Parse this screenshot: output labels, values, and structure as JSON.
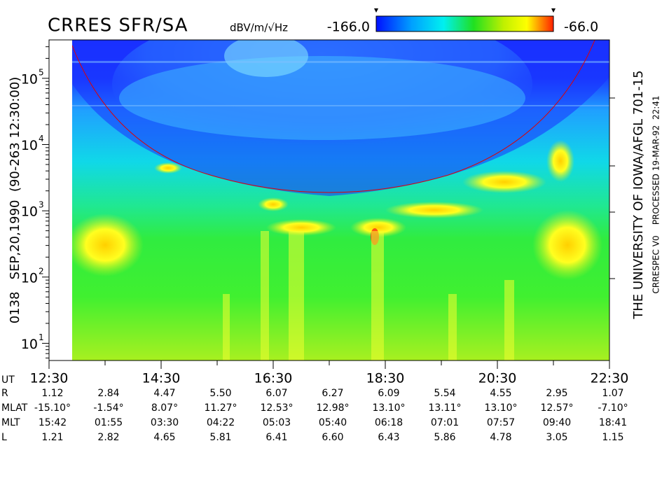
{
  "chart_data": {
    "type": "spectrogram",
    "title": "CRRES SFR/SA",
    "colorbar": {
      "unit": "dBV/m/√Hz",
      "range": [
        {
          "value": -166,
          "label": "-166.0"
        },
        {
          "value": -66,
          "label": "-66.0"
        }
      ]
    },
    "log_y": true,
    "ylim": [
      5.5,
      380000
    ],
    "yticks": [
      {
        "value": 10,
        "label": "10",
        "exponent": "1"
      },
      {
        "value": 100,
        "label": "10",
        "exponent": "2"
      },
      {
        "value": 1000,
        "label": "10",
        "exponent": "3"
      },
      {
        "value": 10000,
        "label": "10",
        "exponent": "4"
      },
      {
        "value": 100000,
        "label": "10",
        "exponent": "5"
      }
    ],
    "xlim": [
      12.5,
      22.5
    ],
    "xticks": [
      {
        "value": 12.5,
        "label": "12:30"
      },
      {
        "value": 14.5,
        "label": "14:30"
      },
      {
        "value": 16.5,
        "label": "16:30"
      },
      {
        "value": 18.5,
        "label": "18:30"
      },
      {
        "value": 20.5,
        "label": "20:30"
      },
      {
        "value": 22.5,
        "label": "22:30"
      }
    ],
    "minor_xticks": [
      13.5,
      15.5,
      17.5,
      19.5,
      21.5
    ],
    "left_label": "0138   SEP,20,1990  (90-263 12:30:00)",
    "right_label": "THE UNIVERSITY OF IOWA/AFGL 701-15",
    "processing_note": "CRRESPEC V0    PROCESSED 19-MAR-92  22:41",
    "ephemeris": {
      "ut_label": "UT",
      "rows": [
        {
          "name": "R",
          "values": [
            "1.12",
            "2.84",
            "4.47",
            "5.50",
            "6.07",
            "6.27",
            "6.09",
            "5.54",
            "4.55",
            "2.95",
            "1.07"
          ]
        },
        {
          "name": "MLAT",
          "values": [
            "-15.10°",
            "-1.54°",
            "8.07°",
            "11.27°",
            "12.53°",
            "12.98°",
            "13.10°",
            "13.11°",
            "13.10°",
            "12.57°",
            "-7.10°"
          ]
        },
        {
          "name": "MLT",
          "values": [
            "15:42",
            "01:55",
            "03:30",
            "04:22",
            "05:03",
            "05:40",
            "06:18",
            "07:01",
            "07:57",
            "09:40",
            "18:41"
          ]
        },
        {
          "name": "L",
          "values": [
            "1.21",
            "2.82",
            "4.65",
            "5.81",
            "6.41",
            "6.60",
            "6.43",
            "5.86",
            "4.78",
            "3.05",
            "1.15"
          ]
        }
      ]
    }
  }
}
